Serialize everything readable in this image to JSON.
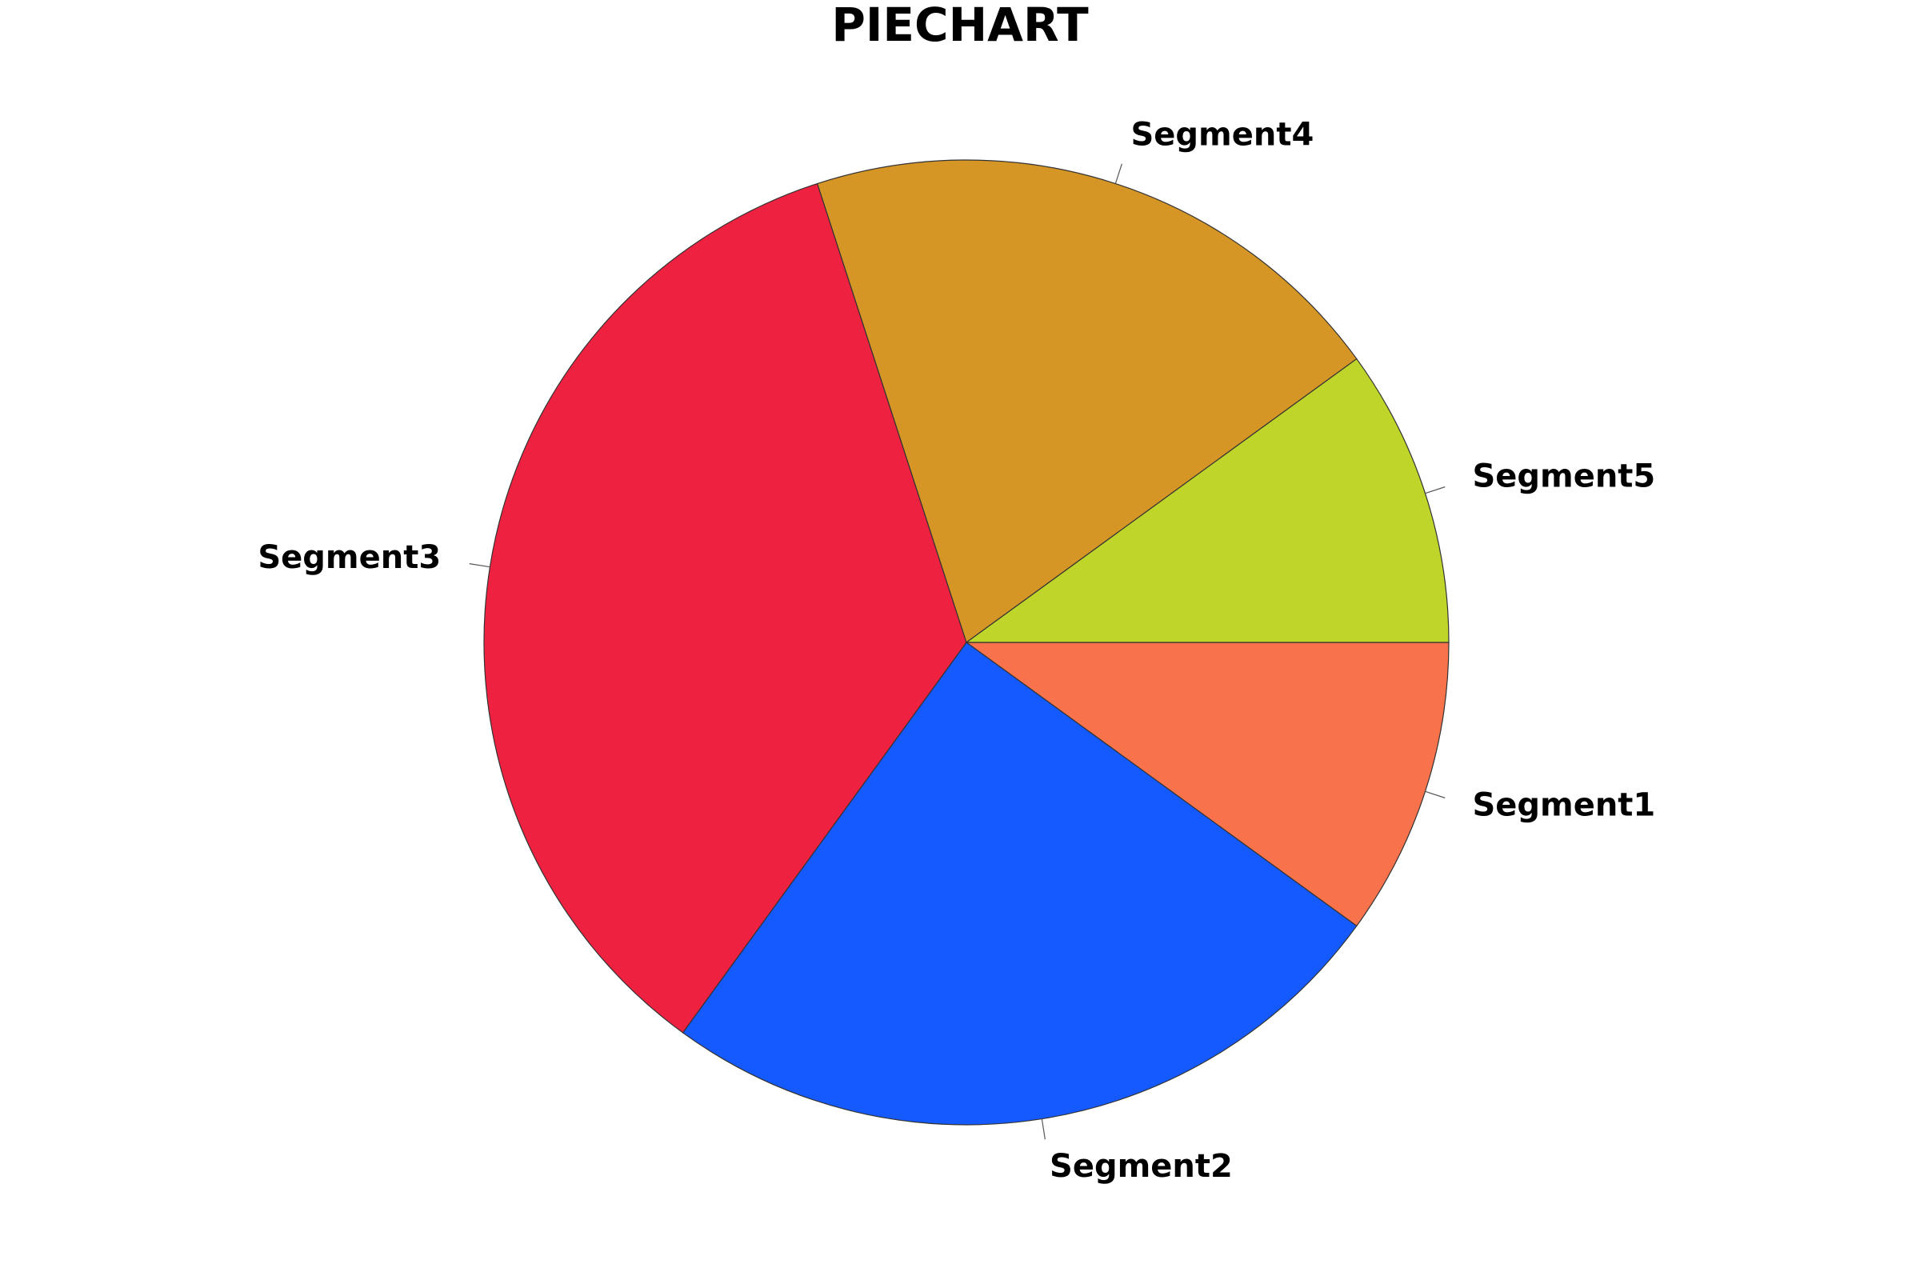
{
  "chart_data": {
    "type": "pie",
    "title": "PIECHART",
    "categories": [
      "Segment1",
      "Segment2",
      "Segment3",
      "Segment4",
      "Segment5"
    ],
    "values": [
      10,
      25,
      35,
      20,
      10
    ],
    "colors": [
      "#F8734C",
      "#145AFF",
      "#EE2140",
      "#D59626",
      "#C0D52A"
    ],
    "start_angle_deg": 0,
    "direction": "clockwise",
    "legend": "none"
  }
}
